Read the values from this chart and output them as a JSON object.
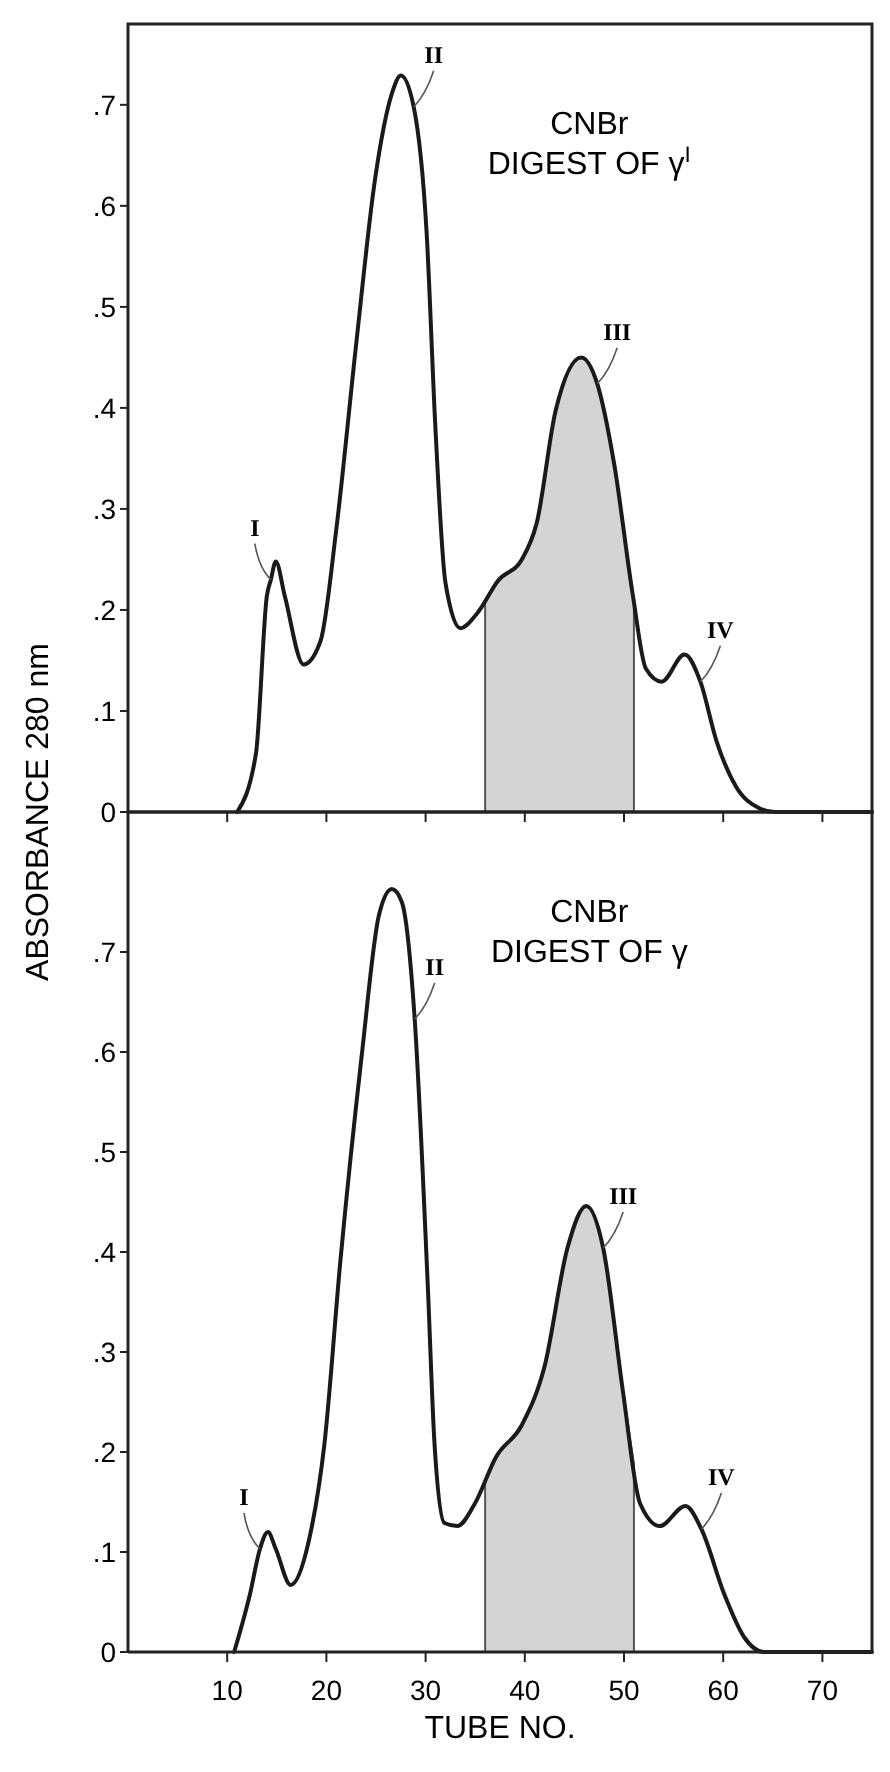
{
  "chart_data": [
    {
      "type": "line",
      "title": "CNBr\nDIGEST OF γ$^{I}$",
      "ylabel": "ABSORBANCE  280 nm",
      "tick_labels": "y",
      "grid": false,
      "xlim": [
        0,
        75
      ],
      "xticks": [
        {
          "value": 10,
          "label": null
        },
        {
          "value": 20,
          "label": null
        },
        {
          "value": 30,
          "label": null
        },
        {
          "value": 40,
          "label": null
        },
        {
          "value": 50,
          "label": null
        },
        {
          "value": 60,
          "label": null
        },
        {
          "value": 70,
          "label": null
        }
      ],
      "ylim": [
        0,
        0.78
      ],
      "yticks": [
        0,
        {
          "value": 0.1,
          "label": ".1"
        },
        {
          "value": 0.2,
          "label": ".2"
        },
        {
          "value": 0.3,
          "label": ".3"
        },
        {
          "value": 0.4,
          "label": ".4"
        },
        {
          "value": 0.5,
          "label": ".5"
        },
        {
          "value": 0.6,
          "label": ".6"
        },
        {
          "value": 0.7,
          "label": ".7"
        }
      ],
      "series": [
        {
          "color": "#1a1a1a",
          "x": [
            11.0,
            12.9,
            14.0,
            14.4,
            14.9,
            15.8,
            17.7,
            19.4,
            21.0,
            23.0,
            24.9,
            26.6,
            27.5,
            28.8,
            30.1,
            31.0,
            32.0,
            33.5,
            35.3,
            37.3,
            39.7,
            41.2,
            43.1,
            45.7,
            47.3,
            49.0,
            50.9,
            52.2,
            53.8,
            56.1,
            57.7,
            59.3,
            61.3,
            63.6,
            65.2,
            75
          ],
          "values": [
            0,
            0.058,
            0.214,
            0.23,
            0.248,
            0.214,
            0.146,
            0.169,
            0.28,
            0.463,
            0.626,
            0.711,
            0.729,
            0.698,
            0.574,
            0.378,
            0.227,
            0.182,
            0.198,
            0.229,
            0.25,
            0.286,
            0.397,
            0.45,
            0.424,
            0.345,
            0.214,
            0.142,
            0.129,
            0.156,
            0.129,
            0.071,
            0.025,
            0.004,
            0,
            0
          ]
        },
        {
          "type": "area",
          "color": "#d4d4d4",
          "x": [
            36,
            37.3,
            39.7,
            41.2,
            43.1,
            45.7,
            47.3,
            49.0,
            50.9,
            51
          ],
          "values": [
            0.209,
            0.229,
            0.25,
            0.286,
            0.397,
            0.45,
            0.424,
            0.345,
            0.214,
            0.208
          ]
        }
      ],
      "annotations": [
        {
          "text": "I",
          "x": 14.4,
          "y": 0.23
        },
        {
          "text": "II",
          "x": 28.8,
          "y": 0.698
        },
        {
          "text": "III",
          "x": 47.3,
          "y": 0.424
        },
        {
          "text": "IV",
          "x": 57.7,
          "y": 0.129
        }
      ]
    },
    {
      "type": "line",
      "title": "CNBr\nDIGEST OF γ",
      "xlabel": "TUBE NO.",
      "grid": false,
      "xlim": [
        0,
        75
      ],
      "xticks": [
        10,
        20,
        30,
        40,
        50,
        60,
        70
      ],
      "ylim": [
        0,
        0.84
      ],
      "yticks": [
        0,
        {
          "value": 0.1,
          "label": ".1"
        },
        {
          "value": 0.2,
          "label": ".2"
        },
        {
          "value": 0.3,
          "label": ".3"
        },
        {
          "value": 0.4,
          "label": ".4"
        },
        {
          "value": 0.5,
          "label": ".5"
        },
        {
          "value": 0.6,
          "label": ".6"
        },
        {
          "value": 0.7,
          "label": ".7"
        }
      ],
      "series": [
        {
          "color": "#1a1a1a",
          "x": [
            10.7,
            12.3,
            13.3,
            14.1,
            14.9,
            16.4,
            18.2,
            19.8,
            21.4,
            23.6,
            25.3,
            26.6,
            27.6,
            28.9,
            30.2,
            30.9,
            31.9,
            33.2,
            35.0,
            37.1,
            39.7,
            42.0,
            44.3,
            46.2,
            47.9,
            49.9,
            51.6,
            53.6,
            56.2,
            57.8,
            60.1,
            62.1,
            64.1,
            75
          ],
          "values": [
            0,
            0.058,
            0.103,
            0.12,
            0.103,
            0.067,
            0.11,
            0.208,
            0.39,
            0.6,
            0.737,
            0.763,
            0.75,
            0.633,
            0.371,
            0.208,
            0.129,
            0.126,
            0.149,
            0.195,
            0.227,
            0.286,
            0.404,
            0.446,
            0.404,
            0.26,
            0.149,
            0.126,
            0.146,
            0.123,
            0.058,
            0.015,
            0,
            0
          ]
        },
        {
          "type": "area",
          "color": "#d4d4d4",
          "x": [
            36,
            37.1,
            39.7,
            42.0,
            44.3,
            46.2,
            47.9,
            49.9,
            51
          ],
          "values": [
            0.171,
            0.195,
            0.227,
            0.286,
            0.404,
            0.446,
            0.404,
            0.26,
            0.188
          ]
        }
      ],
      "annotations": [
        {
          "text": "I",
          "x": 13.3,
          "y": 0.103
        },
        {
          "text": "II",
          "x": 28.9,
          "y": 0.633
        },
        {
          "text": "III",
          "x": 47.9,
          "y": 0.404
        },
        {
          "text": "IV",
          "x": 57.8,
          "y": 0.123
        }
      ]
    }
  ]
}
